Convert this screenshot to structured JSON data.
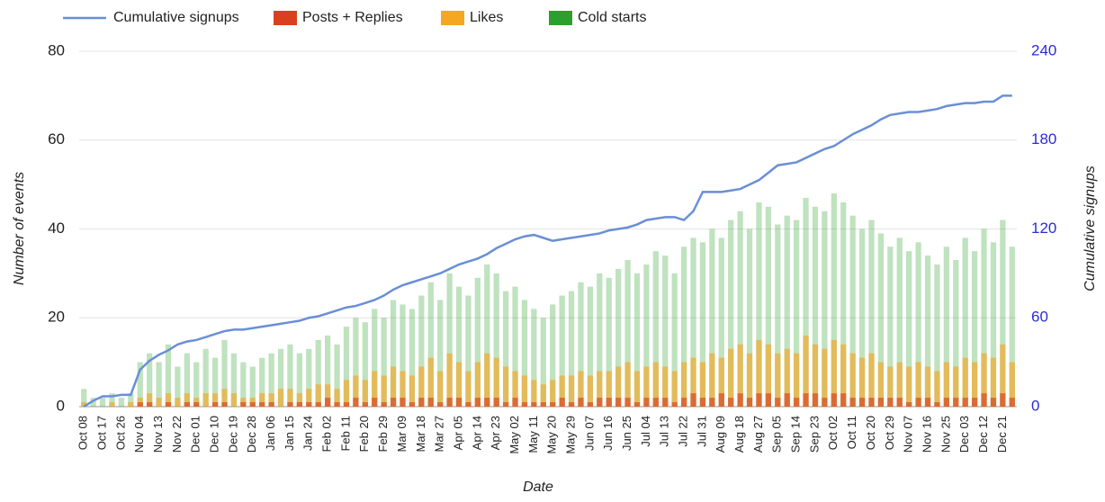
{
  "chart_data": {
    "type": "bar",
    "ylabel": "Number of events",
    "y2label": "Cumulative signups",
    "xlabel": "Date",
    "categories": [
      "Oct 08",
      null,
      "Oct 17",
      null,
      "Oct 26",
      null,
      "Nov 04",
      null,
      "Nov 13",
      null,
      "Nov 22",
      null,
      "Dec 01",
      null,
      "Dec 10",
      null,
      "Dec 19",
      null,
      "Dec 28",
      null,
      "Jan 06",
      null,
      "Jan 15",
      null,
      "Jan 24",
      null,
      "Feb 02",
      null,
      "Feb 11",
      null,
      "Feb 20",
      null,
      "Feb 29",
      null,
      "Mar 09",
      null,
      "Mar 18",
      null,
      "Mar 27",
      null,
      "Apr 05",
      null,
      "Apr 14",
      null,
      "Apr 23",
      null,
      "May 02",
      null,
      "May 11",
      null,
      "May 20",
      null,
      "May 29",
      null,
      "Jun 07",
      null,
      "Jun 16",
      null,
      "Jun 25",
      null,
      "Jul 04",
      null,
      "Jul 13",
      null,
      "Jul 22",
      null,
      "Jul 31",
      null,
      "Aug 09",
      null,
      "Aug 18",
      null,
      "Aug 27",
      null,
      "Sep 05",
      null,
      "Sep 14",
      null,
      "Sep 23",
      null,
      "Oct 02",
      null,
      "Oct 11",
      null,
      "Oct 20",
      null,
      "Oct 29",
      null,
      "Nov 07",
      null,
      "Nov 16",
      null,
      "Nov 25",
      null,
      "Dec 03",
      null,
      "Dec 12",
      null,
      "Dec 21",
      null
    ],
    "series": [
      {
        "name": "Cumulative signups",
        "type": "line",
        "axis": "y2",
        "color": "#6a8fd6",
        "values": [
          0,
          4,
          7,
          7,
          8,
          8,
          25,
          31,
          35,
          38,
          42,
          44,
          45,
          47,
          49,
          51,
          52,
          52,
          53,
          54,
          55,
          56,
          57,
          58,
          60,
          61,
          63,
          65,
          67,
          68,
          70,
          72,
          75,
          79,
          82,
          84,
          86,
          88,
          90,
          93,
          96,
          98,
          100,
          103,
          107,
          110,
          113,
          115,
          116,
          114,
          112,
          113,
          114,
          115,
          116,
          117,
          119,
          120,
          121,
          123,
          126,
          127,
          128,
          128,
          126,
          132,
          145,
          145,
          145,
          146,
          147,
          150,
          153,
          158,
          163,
          164,
          165,
          168,
          171,
          174,
          176,
          180,
          184,
          187,
          190,
          194,
          197,
          198,
          199,
          199,
          200,
          201,
          203,
          204,
          205,
          205,
          206,
          206,
          210,
          210
        ]
      },
      {
        "name": "Posts + Replies",
        "type": "bar",
        "color": "#d9411e",
        "values": [
          0,
          0,
          0,
          0,
          0,
          0,
          1,
          1,
          0,
          1,
          0,
          1,
          1,
          0,
          1,
          1,
          0,
          1,
          1,
          1,
          1,
          0,
          1,
          1,
          1,
          1,
          2,
          1,
          1,
          2,
          1,
          2,
          1,
          2,
          2,
          1,
          2,
          2,
          1,
          2,
          2,
          1,
          2,
          2,
          2,
          1,
          2,
          1,
          1,
          1,
          1,
          2,
          1,
          2,
          1,
          2,
          2,
          2,
          2,
          1,
          2,
          2,
          2,
          1,
          2,
          3,
          2,
          2,
          3,
          2,
          3,
          2,
          3,
          3,
          2,
          3,
          2,
          3,
          3,
          2,
          3,
          3,
          2,
          2,
          2,
          2,
          2,
          2,
          1,
          2,
          2,
          1,
          2,
          2,
          2,
          2,
          3,
          2,
          3,
          2
        ]
      },
      {
        "name": "Likes",
        "type": "bar",
        "color": "#f5a623",
        "values": [
          1,
          0,
          0,
          1,
          0,
          1,
          2,
          3,
          2,
          3,
          2,
          3,
          2,
          3,
          3,
          4,
          3,
          2,
          2,
          3,
          3,
          4,
          4,
          3,
          4,
          5,
          5,
          4,
          6,
          7,
          6,
          8,
          7,
          9,
          8,
          7,
          9,
          11,
          8,
          12,
          10,
          8,
          10,
          12,
          11,
          9,
          8,
          7,
          6,
          5,
          6,
          7,
          7,
          8,
          7,
          8,
          8,
          9,
          10,
          8,
          9,
          10,
          9,
          8,
          10,
          11,
          10,
          12,
          11,
          13,
          14,
          12,
          15,
          14,
          12,
          13,
          12,
          16,
          14,
          13,
          15,
          14,
          12,
          11,
          12,
          10,
          9,
          10,
          9,
          10,
          9,
          8,
          10,
          9,
          11,
          10,
          12,
          11,
          14,
          10
        ]
      },
      {
        "name": "Cold starts",
        "type": "bar",
        "color": "#2ca02c",
        "values": [
          4,
          2,
          2,
          3,
          2,
          3,
          10,
          12,
          10,
          14,
          9,
          12,
          10,
          13,
          11,
          15,
          12,
          10,
          9,
          11,
          12,
          13,
          14,
          12,
          13,
          15,
          16,
          14,
          18,
          20,
          19,
          22,
          20,
          24,
          23,
          22,
          25,
          28,
          24,
          30,
          27,
          25,
          29,
          32,
          30,
          26,
          27,
          24,
          22,
          20,
          23,
          25,
          26,
          28,
          27,
          30,
          29,
          31,
          33,
          30,
          32,
          35,
          34,
          30,
          36,
          38,
          37,
          40,
          38,
          42,
          44,
          40,
          46,
          45,
          41,
          43,
          42,
          47,
          45,
          44,
          48,
          46,
          43,
          40,
          42,
          39,
          36,
          38,
          35,
          37,
          34,
          32,
          36,
          33,
          38,
          35,
          40,
          37,
          42,
          36
        ]
      }
    ],
    "ylim": [
      0,
      80
    ],
    "yticks": [
      0,
      20,
      40,
      60,
      80
    ],
    "y2lim": [
      0,
      240
    ],
    "y2ticks": [
      0,
      60,
      120,
      180,
      240
    ],
    "y2color": "#2b2bd6",
    "grid": true,
    "legend": "top"
  }
}
